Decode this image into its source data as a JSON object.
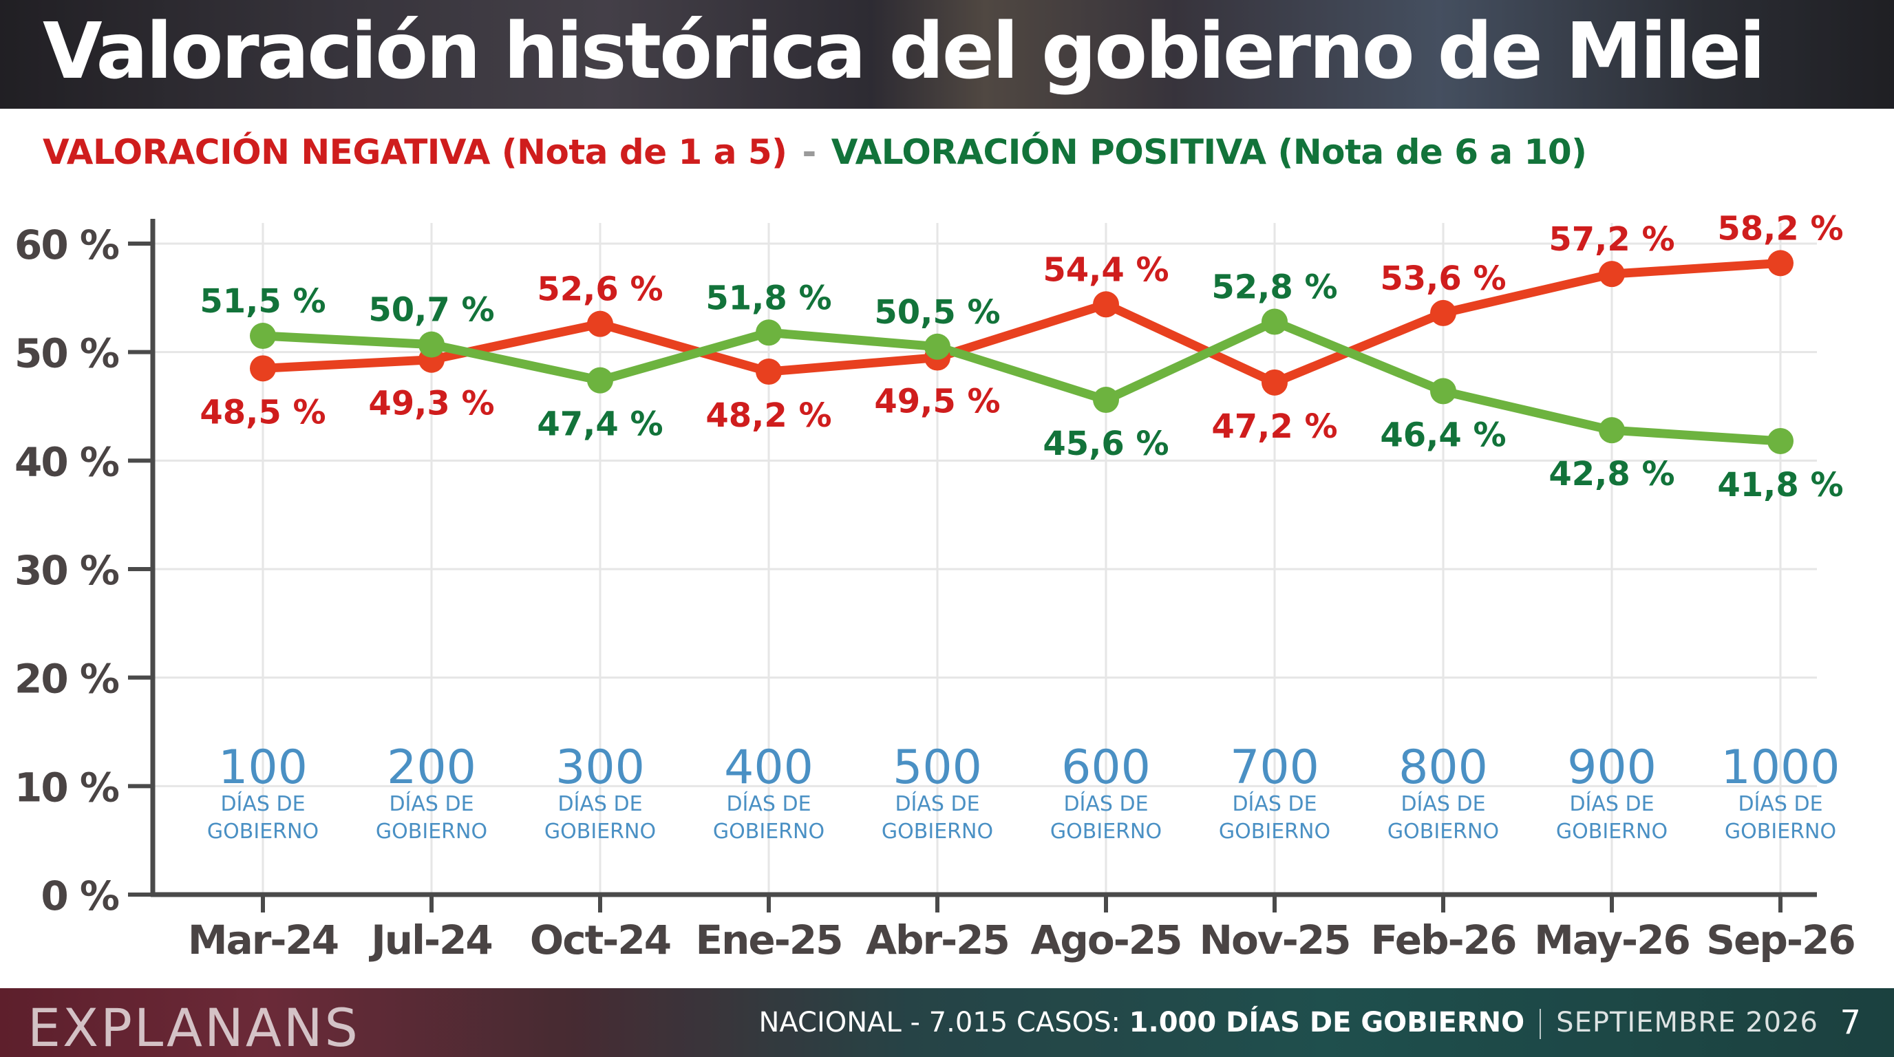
{
  "header": {
    "title": "Valoración histórica del gobierno de Milei",
    "subtitle_negative": "VALORACIÓN NEGATIVA (Nota de 1 a 5)",
    "subtitle_separator": "-",
    "subtitle_positive": "VALORACIÓN POSITIVA (Nota de 6 a 10)"
  },
  "chart_data": {
    "type": "line",
    "categories": [
      "Mar-24",
      "Jul-24",
      "Oct-24",
      "Ene-25",
      "Abr-25",
      "Ago-25",
      "Nov-25",
      "Feb-26",
      "May-26",
      "Sep-26"
    ],
    "series": [
      {
        "name": "VALORACIÓN NEGATIVA (Nota de 1 a 5)",
        "color": "#e8401f",
        "label_color": "#cf1d1d",
        "values": [
          48.5,
          49.3,
          52.6,
          48.2,
          49.5,
          54.4,
          47.2,
          53.6,
          57.2,
          58.2
        ],
        "labels": [
          "48,5 %",
          "49,3 %",
          "52,6 %",
          "48,2 %",
          "49,5 %",
          "54,4 %",
          "47,2 %",
          "53,6 %",
          "57,2 %",
          "58,2 %"
        ]
      },
      {
        "name": "VALORACIÓN POSITIVA (Nota de 6 a 10)",
        "color": "#6db33f",
        "label_color": "#12733a",
        "values": [
          51.5,
          50.7,
          47.4,
          51.8,
          50.5,
          45.6,
          52.8,
          46.4,
          42.8,
          41.8
        ],
        "labels": [
          "51,5 %",
          "50,7 %",
          "47,4 %",
          "51,8 %",
          "50,5 %",
          "45,6 %",
          "52,8 %",
          "46,4 %",
          "42,8 %",
          "41,8 %"
        ]
      }
    ],
    "ylim": [
      0,
      60
    ],
    "yticks": [
      0,
      10,
      20,
      30,
      40,
      50,
      60
    ],
    "ytick_labels": [
      "0 %",
      "10 %",
      "20 %",
      "30 %",
      "40 %",
      "50 %",
      "60 %"
    ],
    "grid": true,
    "milestones": {
      "numbers": [
        "100",
        "200",
        "300",
        "400",
        "500",
        "600",
        "700",
        "800",
        "900",
        "1000"
      ],
      "line1": "DÍAS DE",
      "line2": "GOBIERNO",
      "color": "#4a90c4"
    },
    "axis_color": "#4a4a4a",
    "tick_label_color": "#4a4444",
    "grid_color": "#e6e6e6"
  },
  "footer": {
    "brand": "EXPLANANS",
    "scope": "NACIONAL - 7.015 CASOS:",
    "highlight": "1.000 DÍAS DE GOBIERNO",
    "date": "SEPTIEMBRE 2026",
    "page_number": "7"
  }
}
